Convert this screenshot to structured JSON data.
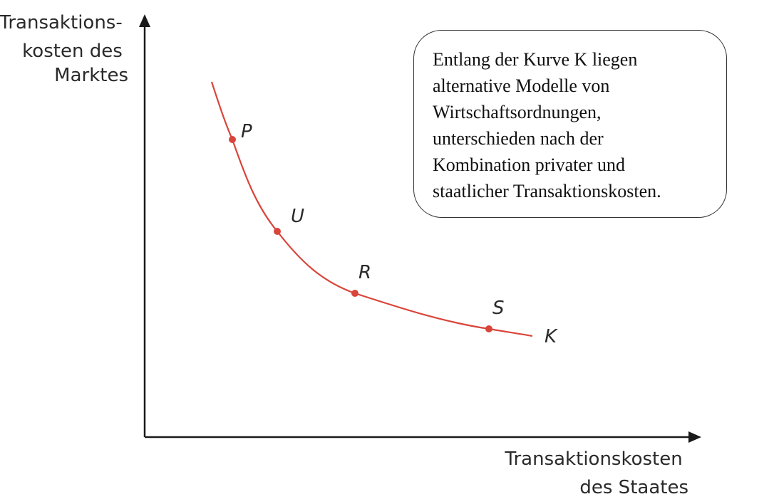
{
  "y_axis_label_lines": [
    "Transaktions-",
    "kosten des",
    "Marktes"
  ],
  "x_axis_label_lines": [
    "Transaktionskosten",
    "des Staates"
  ],
  "curve_label": "K",
  "points": [
    {
      "label": "P"
    },
    {
      "label": "U"
    },
    {
      "label": "R"
    },
    {
      "label": "S"
    }
  ],
  "note": "Entlang der Kurve K liegen\nalternative Modelle von\nWirtschaftsordnungen,\nunterschieden nach der\nKombination privater und\nstaatlicher Transaktionskosten.",
  "colors": {
    "curve": "#d9453a",
    "axis": "#1a1a1a"
  }
}
